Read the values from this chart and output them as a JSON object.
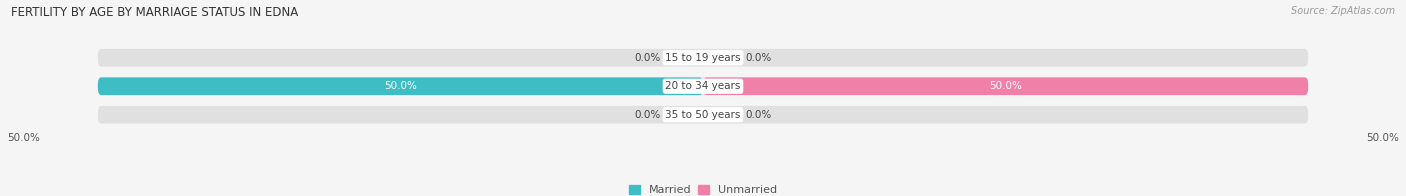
{
  "title": "FERTILITY BY AGE BY MARRIAGE STATUS IN EDNA",
  "source": "Source: ZipAtlas.com",
  "categories": [
    "15 to 19 years",
    "20 to 34 years",
    "35 to 50 years"
  ],
  "married_values": [
    0.0,
    50.0,
    0.0
  ],
  "unmarried_values": [
    0.0,
    50.0,
    0.0
  ],
  "married_color": "#3ebdc4",
  "unmarried_color": "#f080a8",
  "bar_bg_color": "#e0e0e0",
  "bar_height": 0.62,
  "xlim": 50.0,
  "x_tick_labels_left": "50.0%",
  "x_tick_labels_right": "50.0%",
  "legend_married": "Married",
  "legend_unmarried": "Unmarried",
  "title_fontsize": 8.5,
  "source_fontsize": 7,
  "label_fontsize": 7.5,
  "category_fontsize": 7.5,
  "tick_fontsize": 7.5,
  "bg_color": "#f5f5f5"
}
